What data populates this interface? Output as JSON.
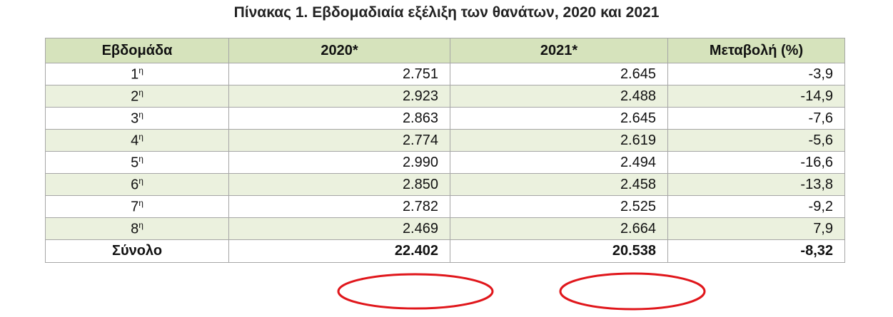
{
  "title": "Πίνακας 1. Εβδομαδιαία εξέλιξη των θανάτων, 2020 και 2021",
  "table": {
    "header": [
      "Εβδομάδα",
      "2020*",
      "2021*",
      "Μεταβολή (%)"
    ],
    "rows": [
      {
        "week": "1",
        "suffix": "η",
        "cells": [
          "2.751",
          "2.645",
          "-3,9"
        ]
      },
      {
        "week": "2",
        "suffix": "η",
        "cells": [
          "2.923",
          "2.488",
          "-14,9"
        ]
      },
      {
        "week": "3",
        "suffix": "η",
        "cells": [
          "2.863",
          "2.645",
          "-7,6"
        ]
      },
      {
        "week": "4",
        "suffix": "η",
        "cells": [
          "2.774",
          "2.619",
          "-5,6"
        ]
      },
      {
        "week": "5",
        "suffix": "η",
        "cells": [
          "2.990",
          "2.494",
          "-16,6"
        ]
      },
      {
        "week": "6",
        "suffix": "η",
        "cells": [
          "2.850",
          "2.458",
          "-13,8"
        ]
      },
      {
        "week": "7",
        "suffix": "η",
        "cells": [
          "2.782",
          "2.525",
          "-9,2"
        ]
      },
      {
        "week": "8",
        "suffix": "η",
        "cells": [
          "2.469",
          "2.664",
          "7,9"
        ]
      }
    ],
    "total": {
      "label": "Σύνολο",
      "cells": [
        "22.402",
        "20.538",
        "-8,32"
      ]
    }
  }
}
